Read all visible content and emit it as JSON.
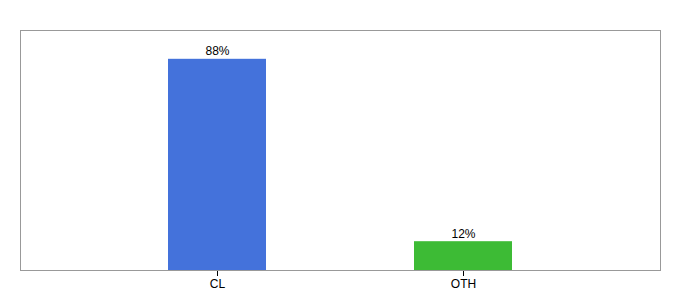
{
  "chart_data": {
    "type": "bar",
    "categories": [
      "CL",
      "OTH"
    ],
    "values": [
      88,
      12
    ],
    "value_labels": [
      "88%",
      "12%"
    ],
    "colors": [
      "#4472db",
      "#3dbb35"
    ],
    "ylim": [
      0,
      100
    ],
    "data_labels": true,
    "tick_labels": "x"
  }
}
